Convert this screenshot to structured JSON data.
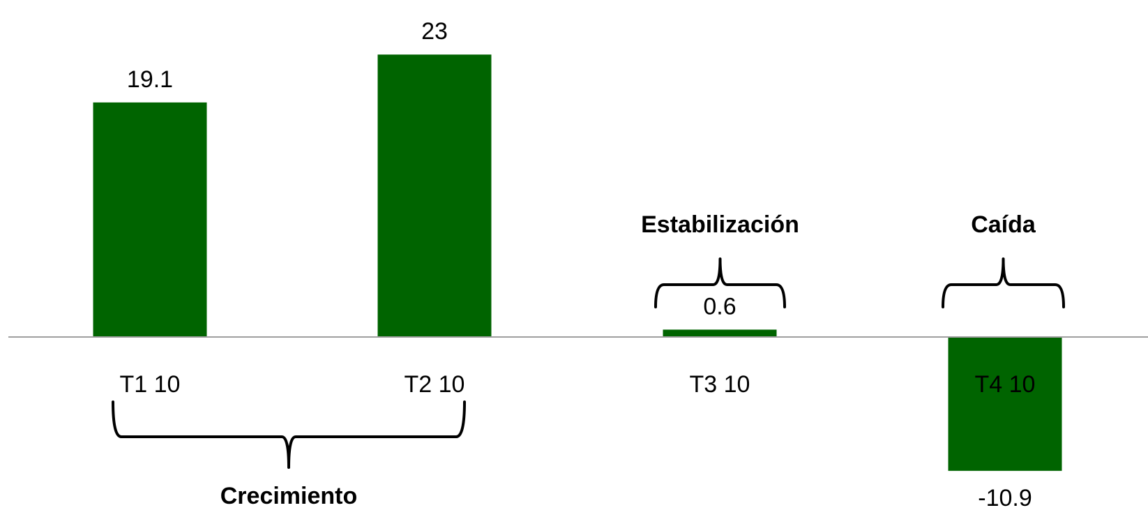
{
  "chart_data": {
    "type": "bar",
    "categories": [
      "T1 10",
      "T2 10",
      "T3 10",
      "T4 10"
    ],
    "values": [
      19.1,
      23,
      0.6,
      -10.9
    ],
    "data_labels": [
      "19.1",
      "23",
      "0.6",
      "-10.9"
    ],
    "title": "",
    "xlabel": "",
    "ylabel": "",
    "ylim": [
      -12,
      25
    ],
    "grid": false,
    "legend": "none",
    "bar_color": "#006400",
    "axis_color": "#9e9e9e",
    "annotations": [
      {
        "text": "Crecimiento",
        "spans": [
          "T1 10",
          "T2 10"
        ],
        "position": "below"
      },
      {
        "text": "Estabilización",
        "spans": [
          "T3 10"
        ],
        "position": "above"
      },
      {
        "text": "Caída",
        "spans": [
          "T4 10"
        ],
        "position": "above"
      }
    ]
  }
}
